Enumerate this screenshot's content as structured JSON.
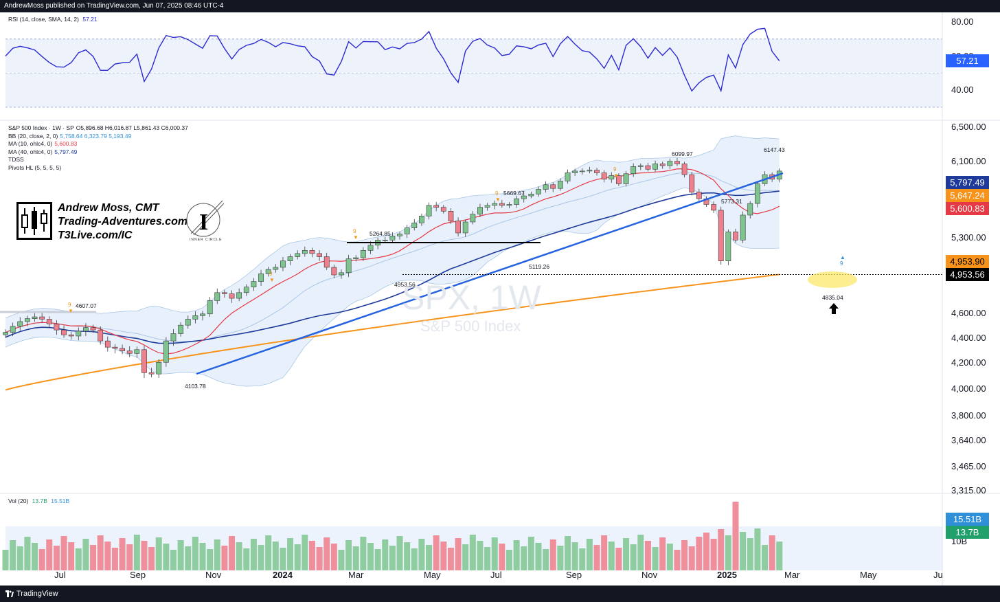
{
  "header": {
    "publisher_text": "AndrewMoss published on TradingView.com, Jun 07, 2025 08:46 UTC-4"
  },
  "footer": {
    "brand": "TradingView"
  },
  "rsi_panel": {
    "legend_label": "RSI (14, close, SMA, 14, 2)",
    "legend_value": "57.21",
    "axis_labels": [
      "80.00",
      "60.00",
      "40.00"
    ],
    "current_badge": "57.21",
    "badge_color": "#2962ff",
    "line_color": "#2a2ad0",
    "band_upper": 70,
    "band_lower": 30
  },
  "price_panel": {
    "legend": [
      {
        "label": "S&P 500 Index · 1W · SP",
        "value": "O5,896.68 H6,016.87 L5,861.43 C6,000.37",
        "color": "#131722"
      },
      {
        "label": "BB (20, close, 2, 0)",
        "value": "5,758.64  6,323.79  5,193.49",
        "color": "#2f8fd8"
      },
      {
        "label": "MA (10, ohlc4, 0)",
        "value": "5,600.83",
        "color": "#e53945"
      },
      {
        "label": "MA (40, ohlc4, 0)",
        "value": "5,797.49",
        "color": "#1e3a9a"
      },
      {
        "label": "TDSS",
        "value": "",
        "color": "#131722"
      },
      {
        "label": "Pivots HL (5, 5, 5, 5)",
        "value": "",
        "color": "#131722"
      }
    ],
    "axis_labels": [
      "6,500.00",
      "6,100.00",
      "5,300.00",
      "4,600.00",
      "4,400.00",
      "4,200.00",
      "4,000.00",
      "3,800.00",
      "3,640.00",
      "3,465.00",
      "3,315.00"
    ],
    "badges": [
      {
        "text": "5,797.49",
        "color": "#1e3a9a"
      },
      {
        "text": "5,647.24",
        "color": "#f7931a"
      },
      {
        "text": "5,600.83",
        "color": "#e53945"
      },
      {
        "text": "4,953.90",
        "color": "#f7931a"
      },
      {
        "text": "4,953.56",
        "color": "#000000"
      }
    ],
    "pivot_labels": [
      "4607.07",
      "4103.78",
      "5264.85",
      "4953.56",
      "5669.67",
      "5119.26",
      "6099.97",
      "5773.31",
      "6147.43",
      "4835.04"
    ],
    "td_counts": [
      "9",
      "9",
      "9",
      "9",
      "9",
      "9"
    ],
    "watermark_symbol": "SPX, 1W",
    "watermark_name": "S&P 500 Index"
  },
  "volume_panel": {
    "legend_label": "Vol (20)",
    "legend_value_1": "13.7B",
    "legend_value_2": "15.51B",
    "axis_label": "10B",
    "badges": [
      {
        "text": "15.51B",
        "color": "#2f8fd8"
      },
      {
        "text": "13.7B",
        "color": "#22a06b"
      }
    ]
  },
  "x_axis": [
    "Jul",
    "Sep",
    "Nov",
    "2024",
    "Mar",
    "May",
    "Jul",
    "Sep",
    "Nov",
    "2025",
    "Mar",
    "May",
    "Ju"
  ],
  "branding": {
    "lines": [
      "Andrew Moss, CMT",
      "Trading-Adventures.com",
      "T3Live.com/IC"
    ],
    "inner_circle_text": "INNER CIRCLE"
  },
  "colors": {
    "up": "#7ec48f",
    "down": "#ee7f8c",
    "bb": "#a9c6e6",
    "ma10": "#e53945",
    "ma40": "#1e3a9a",
    "ma200": "#f7931a",
    "trendline": "#2563e0"
  },
  "chart_data": {
    "type": "candlestick",
    "timeframe": "1W",
    "symbol": "SPX",
    "title": "S&P 500 Index",
    "weekly_close_approx": [
      4450,
      4500,
      4540,
      4565,
      4580,
      4560,
      4520,
      4470,
      4430,
      4420,
      4460,
      4490,
      4470,
      4380,
      4330,
      4320,
      4300,
      4280,
      4310,
      4130,
      4120,
      4210,
      4380,
      4440,
      4510,
      4560,
      4590,
      4605,
      4720,
      4790,
      4780,
      4740,
      4790,
      4840,
      4890,
      4960,
      5000,
      5020,
      5080,
      5120,
      5150,
      5180,
      5150,
      5120,
      5020,
      4950,
      4970,
      5100,
      5110,
      5180,
      5230,
      5280,
      5280,
      5320,
      5340,
      5400,
      5450,
      5520,
      5630,
      5610,
      5570,
      5470,
      5350,
      5460,
      5540,
      5610,
      5630,
      5650,
      5630,
      5640,
      5700,
      5730,
      5750,
      5800,
      5850,
      5810,
      5890,
      5980,
      6000,
      6000,
      6010,
      5980,
      5910,
      5950,
      5860,
      5970,
      6050,
      6060,
      6020,
      6080,
      6060,
      6110,
      6080,
      5960,
      5770,
      5700,
      5640,
      5580,
      5080,
      5360,
      5280,
      5530,
      5650,
      5860,
      5960,
      5910,
      6000
    ],
    "moving_averages": {
      "MA10": 5600.83,
      "MA40": 5797.49,
      "MA200_approx": 4953.9
    },
    "bollinger": {
      "basis": 5758.64,
      "upper": 6323.79,
      "lower": 5193.49
    },
    "rsi_last": 57.21,
    "volume_last": "13.7B",
    "volume_avg20": "15.51B",
    "horizontal_levels": [
      4953.56
    ]
  }
}
